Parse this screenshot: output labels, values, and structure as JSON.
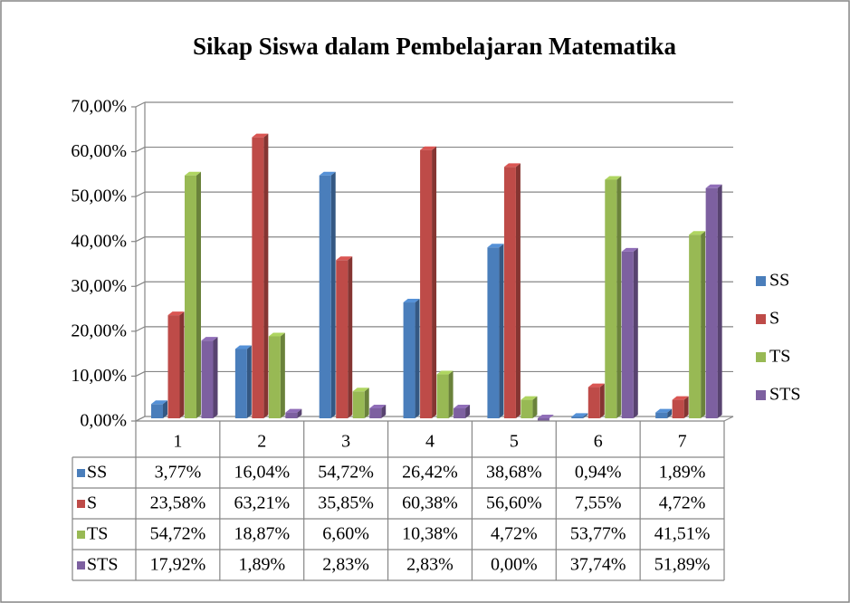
{
  "chart_data": {
    "type": "bar",
    "title": "Sikap Siswa dalam Pembelajaran Matematika",
    "categories": [
      "1",
      "2",
      "3",
      "4",
      "5",
      "6",
      "7"
    ],
    "series": [
      {
        "name": "SS",
        "color": "#4a7ebb",
        "values": [
          3.77,
          16.04,
          54.72,
          26.42,
          38.68,
          0.94,
          1.89
        ],
        "value_labels": [
          "3,77%",
          "16,04%",
          "54,72%",
          "26,42%",
          "38,68%",
          "0,94%",
          "1,89%"
        ]
      },
      {
        "name": "S",
        "color": "#be4b48",
        "values": [
          23.58,
          63.21,
          35.85,
          60.38,
          56.6,
          7.55,
          4.72
        ],
        "value_labels": [
          "23,58%",
          "63,21%",
          "35,85%",
          "60,38%",
          "56,60%",
          "7,55%",
          "4,72%"
        ]
      },
      {
        "name": "TS",
        "color": "#98b954",
        "values": [
          54.72,
          18.87,
          6.6,
          10.38,
          4.72,
          53.77,
          41.51
        ],
        "value_labels": [
          "54,72%",
          "18,87%",
          "6,60%",
          "10,38%",
          "4,72%",
          "53,77%",
          "41,51%"
        ]
      },
      {
        "name": "STS",
        "color": "#7d60a0",
        "values": [
          17.92,
          1.89,
          2.83,
          2.83,
          0.0,
          37.74,
          51.89
        ],
        "value_labels": [
          "17,92%",
          "1,89%",
          "2,83%",
          "2,83%",
          "0,00%",
          "37,74%",
          "51,89%"
        ]
      }
    ],
    "ylim": [
      0,
      70
    ],
    "yticks": [
      {
        "value": 0,
        "label": "0,00%"
      },
      {
        "value": 10,
        "label": "10,00%"
      },
      {
        "value": 20,
        "label": "20,00%"
      },
      {
        "value": 30,
        "label": "30,00%"
      },
      {
        "value": 40,
        "label": "40,00%"
      },
      {
        "value": 50,
        "label": "50,00%"
      },
      {
        "value": 60,
        "label": "60,00%"
      },
      {
        "value": 70,
        "label": "70,00%"
      }
    ],
    "grid": true,
    "legend": "right",
    "data_table": true
  }
}
